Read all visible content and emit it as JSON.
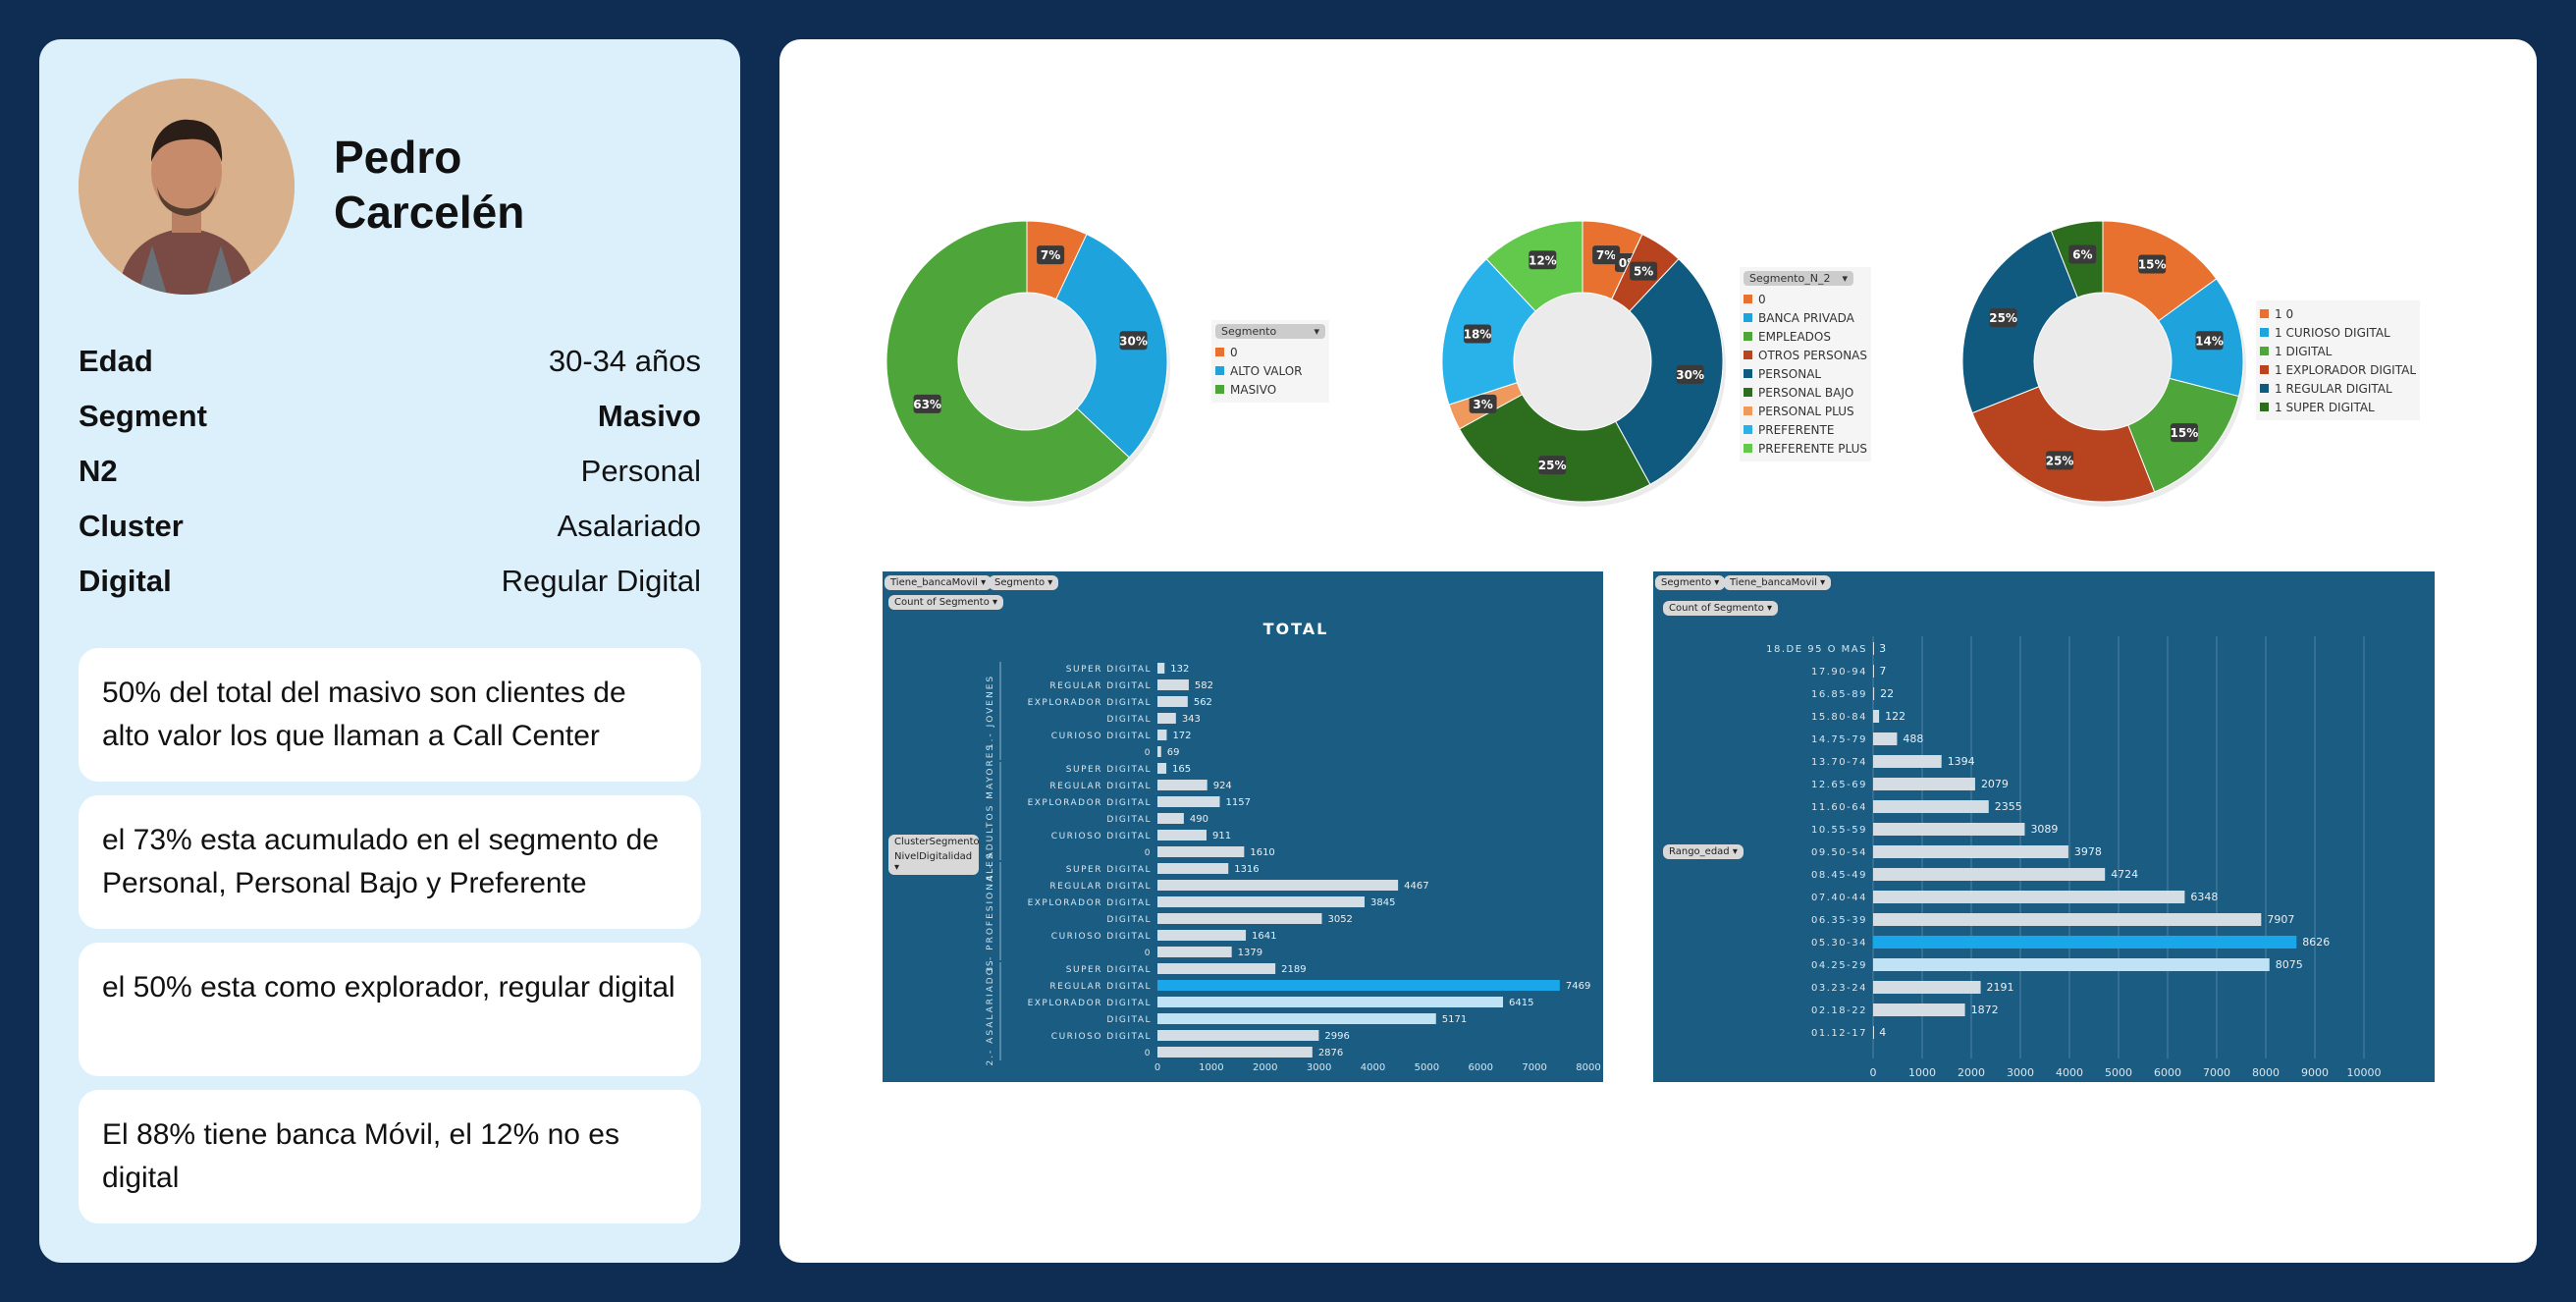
{
  "profile": {
    "first_name": "Pedro",
    "last_name": "Carcelén",
    "rows": [
      {
        "label": "Edad",
        "value": "30-34 años",
        "bold": false
      },
      {
        "label": "Segment",
        "value": "Masivo",
        "bold": true
      },
      {
        "label": "N2",
        "value": "Personal",
        "bold": false
      },
      {
        "label": "Cluster",
        "value": "Asalariado",
        "bold": false
      },
      {
        "label": "Digital",
        "value": "Regular Digital",
        "bold": false
      }
    ],
    "notes": [
      "50% del total del masivo son clientes de alto valor los que llaman a Call Center",
      "el 73% esta acumulado en el segmento de Personal, Personal Bajo y Preferente",
      "el 50% esta como explorador, regular digital",
      "El 88% tiene banca Móvil, el 12% no es digital"
    ]
  },
  "colors": {
    "page_bg": "#0f2d52",
    "left_card_bg": "#dcf0fc",
    "panel_bg": "#1b5c83",
    "highlight_bar": "#1aa7ea"
  },
  "chart_data": [
    {
      "type": "pie",
      "variant": "donut",
      "legend_title": "Segmento",
      "labels": [
        "0",
        "ALTO VALOR",
        "MASIVO"
      ],
      "values": [
        7,
        30,
        63
      ],
      "colors": [
        "#e8712f",
        "#1fa3dc",
        "#4ea63a"
      ]
    },
    {
      "type": "pie",
      "variant": "donut",
      "legend_title": "Segmento_N_2",
      "labels": [
        "0",
        "BANCA PRIVADA",
        "EMPLEADOS",
        "OTROS PERSONAS",
        "PERSONAL",
        "PERSONAL BAJO",
        "PERSONAL PLUS",
        "PREFERENTE",
        "PREFERENTE PLUS"
      ],
      "values": [
        7,
        0,
        0,
        5,
        30,
        25,
        3,
        18,
        12
      ],
      "colors": [
        "#e8712f",
        "#1fa3dc",
        "#4ea63a",
        "#b8431f",
        "#0f5a7e",
        "#2c6e1d",
        "#ef9a5c",
        "#29b1ea",
        "#62c94d"
      ]
    },
    {
      "type": "pie",
      "variant": "donut",
      "legend_title": "",
      "labels": [
        "1 0",
        "1 CURIOSO DIGITAL",
        "1 DIGITAL",
        "1 EXPLORADOR DIGITAL",
        "1 REGULAR DIGITAL",
        "1 SUPER DIGITAL"
      ],
      "values": [
        15,
        14,
        15,
        25,
        25,
        6
      ],
      "colors": [
        "#e8712f",
        "#1fa3dc",
        "#4ea63a",
        "#b8431f",
        "#0f5a7e",
        "#2c6e1d"
      ]
    },
    {
      "type": "bar",
      "orientation": "horizontal",
      "title": "TOTAL",
      "filters": [
        "Tiene_bancaMovil",
        "Segmento"
      ],
      "measure": "Count of Segmento",
      "row_filters": [
        "ClusterSegmento",
        "NivelDigitalidad"
      ],
      "groups": [
        {
          "name": "1.- JOVENES",
          "categories": [
            "SUPER DIGITAL",
            "REGULAR DIGITAL",
            "EXPLORADOR DIGITAL",
            "DIGITAL",
            "CURIOSO DIGITAL",
            "0"
          ],
          "values": [
            132,
            582,
            562,
            343,
            172,
            69
          ]
        },
        {
          "name": "4.- ADULTOS MAYORES",
          "categories": [
            "SUPER DIGITAL",
            "REGULAR DIGITAL",
            "EXPLORADOR DIGITAL",
            "DIGITAL",
            "CURIOSO DIGITAL",
            "0"
          ],
          "values": [
            165,
            924,
            1157,
            490,
            911,
            1610
          ]
        },
        {
          "name": "3.- PROFESIONALES",
          "categories": [
            "SUPER DIGITAL",
            "REGULAR DIGITAL",
            "EXPLORADOR DIGITAL",
            "DIGITAL",
            "CURIOSO DIGITAL",
            "0"
          ],
          "values": [
            1316,
            4467,
            3845,
            3052,
            1641,
            1379
          ]
        },
        {
          "name": "2.- ASALARIADOS",
          "categories": [
            "SUPER DIGITAL",
            "REGULAR DIGITAL",
            "EXPLORADOR DIGITAL",
            "DIGITAL",
            "CURIOSO DIGITAL",
            "0"
          ],
          "values": [
            2189,
            7469,
            6415,
            5171,
            2996,
            2876
          ]
        }
      ],
      "highlight": {
        "group": 3,
        "index": 1
      },
      "xlim": [
        0,
        8000
      ],
      "xticks": [
        0,
        1000,
        2000,
        3000,
        4000,
        5000,
        6000,
        7000,
        8000
      ]
    },
    {
      "type": "bar",
      "orientation": "horizontal",
      "filters": [
        "Segmento",
        "Tiene_bancaMovil"
      ],
      "measure": "Count of Segmento",
      "row_filter": "Rango_edad",
      "categories": [
        "18.DE 95 O MAS",
        "17.90-94",
        "16.85-89",
        "15.80-84",
        "14.75-79",
        "13.70-74",
        "12.65-69",
        "11.60-64",
        "10.55-59",
        "09.50-54",
        "08.45-49",
        "07.40-44",
        "06.35-39",
        "05.30-34",
        "04.25-29",
        "03.23-24",
        "02.18-22",
        "01.12-17"
      ],
      "values": [
        3,
        7,
        22,
        122,
        488,
        1394,
        2079,
        2355,
        3089,
        3978,
        4724,
        6348,
        7907,
        8626,
        8075,
        2191,
        1872,
        4
      ],
      "highlight_index": 13,
      "xlim": [
        0,
        10000
      ],
      "xticks": [
        0,
        1000,
        2000,
        3000,
        4000,
        5000,
        6000,
        7000,
        8000,
        9000,
        10000
      ]
    }
  ]
}
